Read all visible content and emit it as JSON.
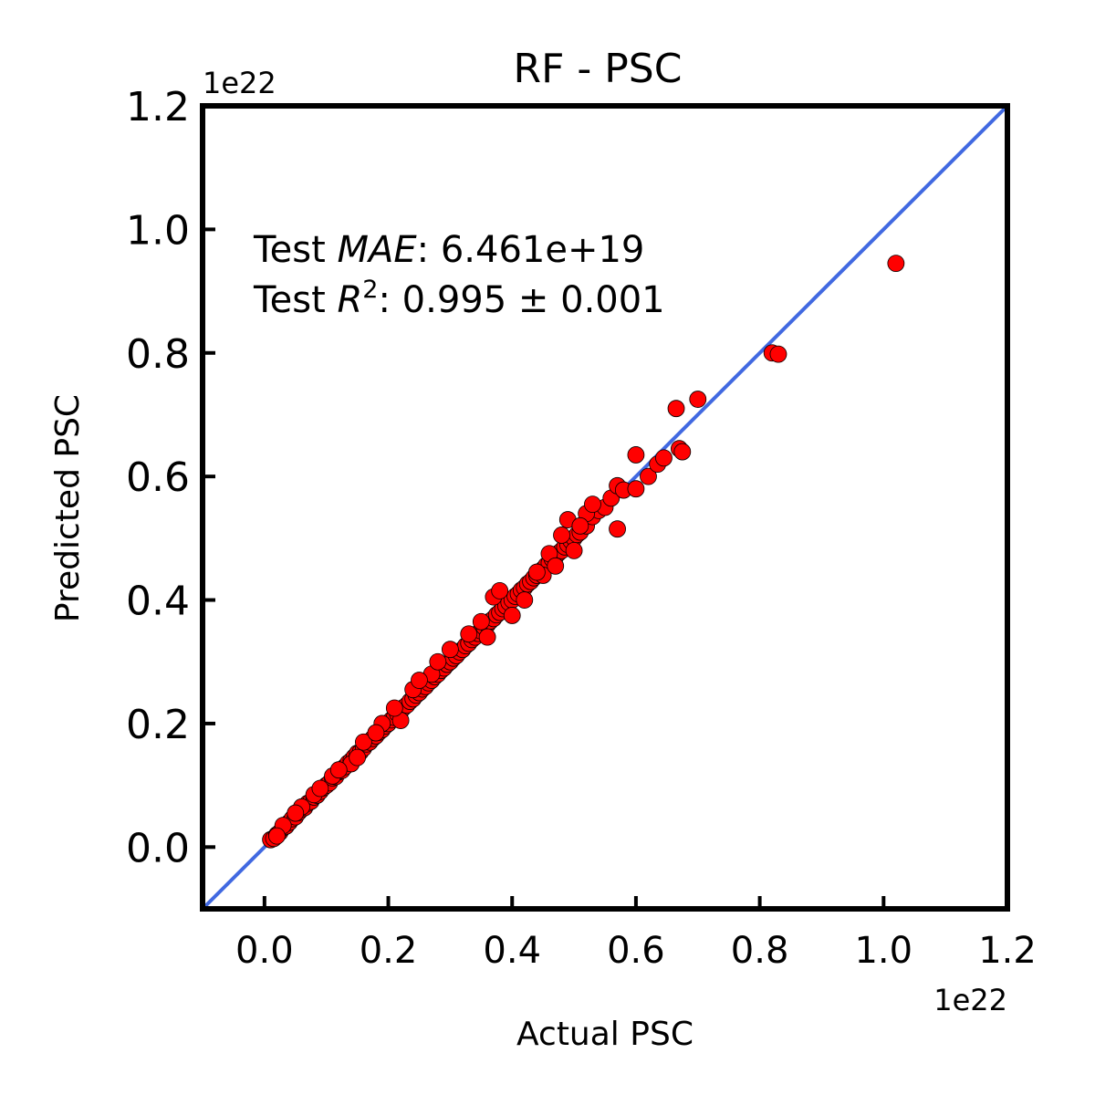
{
  "chart_data": {
    "type": "scatter",
    "title": "RF - PSC",
    "xlabel": "Actual PSC",
    "ylabel": "Predicted PSC",
    "x_offset_label": "1e22",
    "y_offset_label": "1e22",
    "xlim": [
      -0.1,
      1.2
    ],
    "ylim": [
      -0.1,
      1.2
    ],
    "xticks": [
      0.0,
      0.2,
      0.4,
      0.6,
      0.8,
      1.0,
      1.2
    ],
    "yticks": [
      0.0,
      0.2,
      0.4,
      0.6,
      0.8,
      1.0,
      1.2
    ],
    "xtick_labels": [
      "0.0",
      "0.2",
      "0.4",
      "0.6",
      "0.8",
      "1.0",
      "1.2"
    ],
    "ytick_labels": [
      "0.0",
      "0.2",
      "0.4",
      "0.6",
      "0.8",
      "1.0",
      "1.2"
    ],
    "grid": false,
    "annotation": {
      "mae_prefix": "Test ",
      "mae_symbol": "MAE",
      "mae_value": ": 6.461e+19",
      "r2_prefix": "Test ",
      "r2_symbol": "R",
      "r2_sup": "2",
      "r2_value": ": 0.995 ± 0.001"
    },
    "reference_line": {
      "from": [
        -0.1,
        -0.1
      ],
      "to": [
        1.2,
        1.2
      ],
      "color": "#4169e1"
    },
    "point_color": "#ff0000",
    "points": {
      "x": [
        0.01,
        0.015,
        0.02,
        0.025,
        0.03,
        0.035,
        0.04,
        0.045,
        0.05,
        0.055,
        0.06,
        0.065,
        0.07,
        0.075,
        0.08,
        0.085,
        0.09,
        0.095,
        0.1,
        0.105,
        0.11,
        0.115,
        0.12,
        0.125,
        0.13,
        0.135,
        0.14,
        0.145,
        0.15,
        0.155,
        0.16,
        0.165,
        0.17,
        0.175,
        0.18,
        0.185,
        0.19,
        0.195,
        0.2,
        0.205,
        0.21,
        0.215,
        0.22,
        0.225,
        0.23,
        0.235,
        0.24,
        0.245,
        0.25,
        0.255,
        0.26,
        0.265,
        0.27,
        0.275,
        0.28,
        0.285,
        0.29,
        0.295,
        0.3,
        0.305,
        0.31,
        0.315,
        0.32,
        0.325,
        0.33,
        0.335,
        0.34,
        0.345,
        0.35,
        0.355,
        0.36,
        0.365,
        0.37,
        0.375,
        0.38,
        0.385,
        0.39,
        0.395,
        0.4,
        0.405,
        0.41,
        0.415,
        0.42,
        0.425,
        0.43,
        0.435,
        0.44,
        0.445,
        0.45,
        0.455,
        0.46,
        0.465,
        0.47,
        0.475,
        0.48,
        0.485,
        0.49,
        0.495,
        0.5,
        0.505,
        0.51,
        0.52,
        0.53,
        0.54,
        0.55,
        0.56,
        0.57,
        0.58,
        0.6,
        0.6,
        0.62,
        0.635,
        0.645,
        0.665,
        0.67,
        0.675,
        0.7,
        0.82,
        0.83,
        1.02,
        0.37,
        0.4,
        0.42,
        0.45,
        0.46,
        0.48,
        0.5,
        0.52,
        0.57,
        0.36,
        0.33,
        0.3,
        0.27,
        0.24,
        0.22,
        0.19,
        0.16,
        0.14,
        0.11,
        0.08,
        0.06,
        0.35,
        0.38,
        0.44,
        0.47,
        0.49,
        0.51,
        0.53,
        0.28,
        0.25,
        0.21,
        0.18,
        0.15,
        0.12,
        0.09,
        0.05,
        0.03,
        0.02
      ],
      "y": [
        0.012,
        0.014,
        0.02,
        0.024,
        0.031,
        0.034,
        0.04,
        0.046,
        0.049,
        0.056,
        0.061,
        0.064,
        0.071,
        0.074,
        0.081,
        0.084,
        0.09,
        0.096,
        0.1,
        0.104,
        0.112,
        0.114,
        0.122,
        0.124,
        0.13,
        0.136,
        0.14,
        0.146,
        0.152,
        0.154,
        0.16,
        0.167,
        0.17,
        0.176,
        0.18,
        0.186,
        0.19,
        0.196,
        0.2,
        0.206,
        0.21,
        0.216,
        0.22,
        0.226,
        0.23,
        0.236,
        0.24,
        0.246,
        0.25,
        0.256,
        0.26,
        0.266,
        0.27,
        0.276,
        0.28,
        0.286,
        0.29,
        0.296,
        0.3,
        0.306,
        0.31,
        0.316,
        0.32,
        0.326,
        0.33,
        0.336,
        0.34,
        0.346,
        0.35,
        0.356,
        0.36,
        0.366,
        0.37,
        0.376,
        0.38,
        0.386,
        0.39,
        0.396,
        0.4,
        0.406,
        0.41,
        0.416,
        0.42,
        0.426,
        0.43,
        0.436,
        0.44,
        0.446,
        0.45,
        0.456,
        0.46,
        0.466,
        0.47,
        0.476,
        0.48,
        0.486,
        0.49,
        0.496,
        0.5,
        0.506,
        0.51,
        0.52,
        0.535,
        0.545,
        0.55,
        0.565,
        0.585,
        0.578,
        0.635,
        0.58,
        0.6,
        0.62,
        0.63,
        0.71,
        0.645,
        0.64,
        0.725,
        0.8,
        0.798,
        0.945,
        0.405,
        0.375,
        0.4,
        0.44,
        0.475,
        0.505,
        0.48,
        0.54,
        0.515,
        0.34,
        0.345,
        0.32,
        0.28,
        0.255,
        0.205,
        0.2,
        0.17,
        0.135,
        0.115,
        0.085,
        0.065,
        0.365,
        0.415,
        0.445,
        0.455,
        0.53,
        0.52,
        0.555,
        0.3,
        0.27,
        0.225,
        0.185,
        0.145,
        0.125,
        0.095,
        0.055,
        0.035,
        0.018
      ]
    }
  }
}
